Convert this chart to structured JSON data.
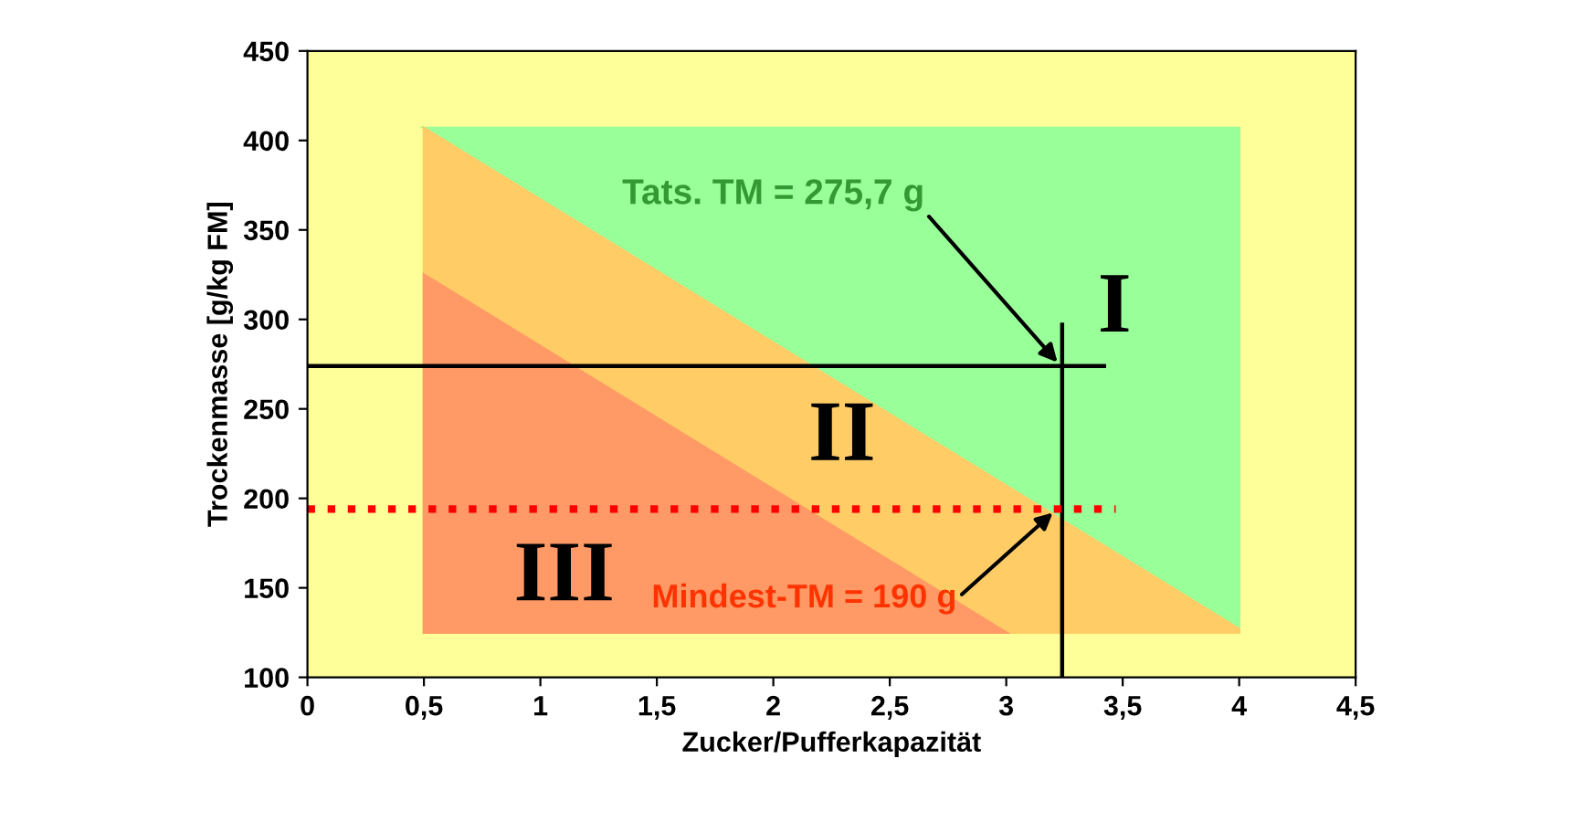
{
  "chart_data": {
    "type": "area",
    "xlabel": "Zucker/Pufferkapazität",
    "ylabel": "Trockenmasse [g/kg FM]",
    "series": [
      {
        "color": "#99ff99",
        "x": [
          0.5,
          4,
          4
        ],
        "values": [
          407,
          407,
          127
        ]
      },
      {
        "color": "#ffcc66",
        "x": [
          0.5,
          4,
          4,
          0.5
        ],
        "values": [
          407,
          127,
          125,
          125
        ]
      },
      {
        "color": "#ff9966",
        "x": [
          0.5,
          3,
          0.5
        ],
        "values": [
          325,
          125,
          125
        ]
      },
      {
        "type": "line",
        "color": "#000000",
        "x": [
          0,
          3.42
        ],
        "values": [
          274,
          274
        ],
        "line_style": "solid"
      },
      {
        "type": "line",
        "color": "#000000",
        "x": [
          3.24,
          3.24
        ],
        "values": [
          100,
          297
        ],
        "line_style": "solid"
      },
      {
        "type": "line",
        "color": "#ff0000",
        "x": [
          0,
          3.47
        ],
        "values": [
          194,
          194
        ],
        "line_style": "dotted"
      }
    ],
    "annotations": [
      {
        "text": "Tats. TM = 275,7 g",
        "x": 3.22,
        "y": 276
      },
      {
        "text": "Mindest-TM = 190 g",
        "x": 3.2,
        "y": 192
      },
      "I",
      "II",
      "III"
    ],
    "xlim": [
      0,
      4.5
    ],
    "ylim": [
      100,
      450
    ],
    "xticks": [
      0,
      {
        "value": 0.5,
        "label": "0,5"
      },
      1,
      {
        "value": 1.5,
        "label": "1,5"
      },
      2,
      {
        "value": 2.5,
        "label": "2,5"
      },
      3,
      {
        "value": 3.5,
        "label": "3,5"
      },
      4,
      {
        "value": 4.5,
        "label": "4,5"
      }
    ],
    "yticks": [
      100,
      150,
      200,
      250,
      300,
      350,
      400,
      450
    ],
    "grid": false,
    "legend": false
  }
}
